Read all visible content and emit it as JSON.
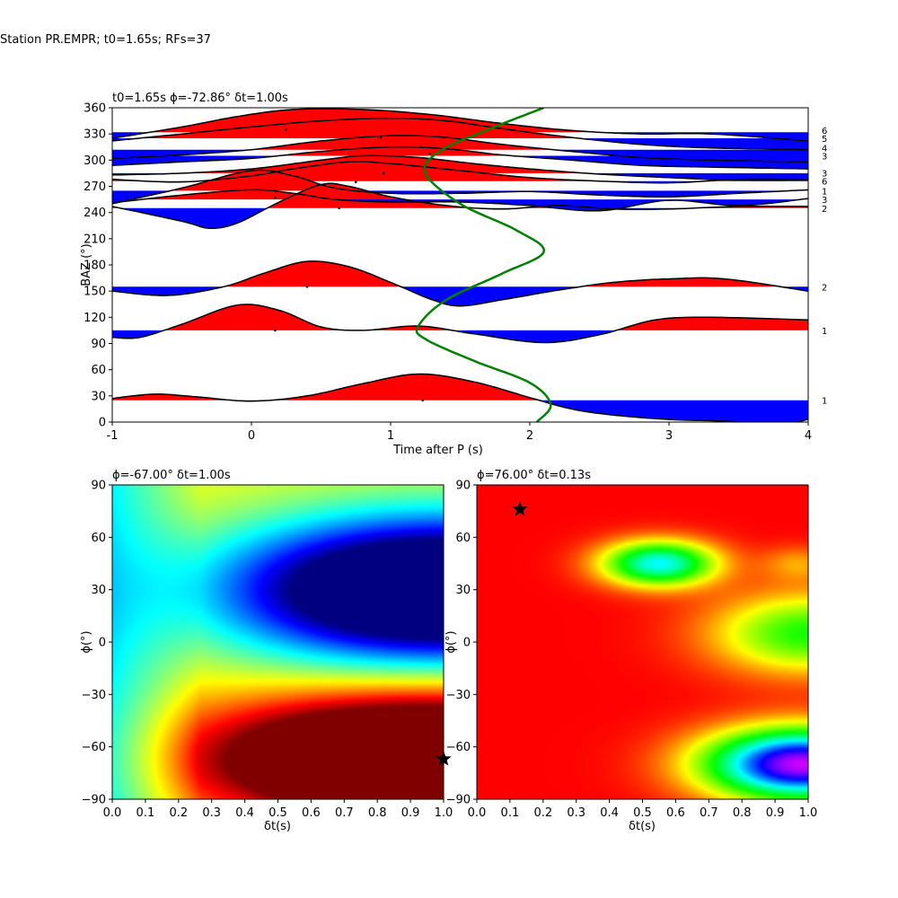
{
  "figure": {
    "suptitle": "Station PR.EMPR; t0=1.65s; RFs=37"
  },
  "chart_data": [
    {
      "type": "line",
      "title": "t0=1.65s ϕ=-72.86° δt=1.00s",
      "xlabel": "Time after P (s)",
      "ylabel": "BAZ (°)",
      "xlim": [
        -1,
        4
      ],
      "ylim": [
        0,
        360
      ],
      "xticks": [
        -1,
        0,
        1,
        2,
        3,
        4
      ],
      "yticks": [
        0,
        30,
        60,
        90,
        120,
        150,
        180,
        210,
        240,
        270,
        300,
        330,
        360
      ],
      "grid": false,
      "traces": [
        {
          "baz": 25,
          "count": "1",
          "points": [
            [
              -1,
              27
            ],
            [
              -0.7,
              32
            ],
            [
              -0.4,
              29
            ],
            [
              0,
              24
            ],
            [
              0.4,
              30
            ],
            [
              0.8,
              44
            ],
            [
              1.2,
              55
            ],
            [
              1.6,
              46
            ],
            [
              2.0,
              28
            ],
            [
              2.3,
              15
            ],
            [
              2.6,
              8
            ],
            [
              3.0,
              3
            ],
            [
              3.4,
              1
            ],
            [
              3.8,
              -2
            ],
            [
              4,
              3
            ]
          ]
        },
        {
          "baz": 105,
          "count": "1",
          "points": [
            [
              -1,
              97
            ],
            [
              -0.8,
              97
            ],
            [
              -0.5,
              112
            ],
            [
              -0.1,
              134
            ],
            [
              0.2,
              128
            ],
            [
              0.5,
              109
            ],
            [
              0.8,
              105
            ],
            [
              1.2,
              110
            ],
            [
              1.6,
              101
            ],
            [
              2.1,
              91
            ],
            [
              2.5,
              100
            ],
            [
              2.9,
              117
            ],
            [
              3.3,
              120
            ],
            [
              4,
              117
            ]
          ]
        },
        {
          "baz": 155,
          "count": "2",
          "points": [
            [
              -1,
              150
            ],
            [
              -0.6,
              145
            ],
            [
              -0.2,
              155
            ],
            [
              0.1,
              171
            ],
            [
              0.4,
              184
            ],
            [
              0.7,
              178
            ],
            [
              1.0,
              160
            ],
            [
              1.3,
              140
            ],
            [
              1.5,
              133
            ],
            [
              1.8,
              140
            ],
            [
              2.2,
              151
            ],
            [
              2.6,
              160
            ],
            [
              3.0,
              164
            ],
            [
              3.4,
              164
            ],
            [
              4,
              150
            ]
          ]
        },
        {
          "baz": 245,
          "count": "2",
          "points": [
            [
              -1,
              247
            ],
            [
              -0.5,
              230
            ],
            [
              -0.3,
              222
            ],
            [
              -0.1,
              228
            ],
            [
              0.2,
              252
            ],
            [
              0.5,
              272
            ],
            [
              0.7,
              270
            ],
            [
              1.0,
              258
            ],
            [
              1.4,
              248
            ],
            [
              1.8,
              244
            ],
            [
              2.2,
              248
            ],
            [
              2.6,
              244
            ],
            [
              3.0,
              244
            ],
            [
              3.5,
              247
            ],
            [
              4,
              247
            ]
          ]
        },
        {
          "baz": 255,
          "count": "3",
          "points": [
            [
              -1,
              251
            ],
            [
              -0.5,
              260
            ],
            [
              0,
              266
            ],
            [
              0.3,
              262
            ],
            [
              0.6,
              255
            ],
            [
              1.0,
              252
            ],
            [
              1.5,
              252
            ],
            [
              2.0,
              248
            ],
            [
              2.5,
              242
            ],
            [
              3.0,
              254
            ],
            [
              3.5,
              248
            ],
            [
              4,
              256
            ]
          ]
        },
        {
          "baz": 265,
          "count": "1",
          "points": [
            [
              -1,
              250
            ],
            [
              -0.5,
              268
            ],
            [
              0,
              288
            ],
            [
              0.3,
              282
            ],
            [
              0.6,
              268
            ],
            [
              1.0,
              262
            ],
            [
              1.5,
              262
            ],
            [
              2.0,
              264
            ],
            [
              2.5,
              260
            ],
            [
              3.0,
              258
            ],
            [
              3.5,
              262
            ],
            [
              4,
              266
            ]
          ]
        },
        {
          "baz": 276,
          "count": "6",
          "points": [
            [
              -1,
              278
            ],
            [
              -0.5,
              275
            ],
            [
              0,
              282
            ],
            [
              0.3,
              290
            ],
            [
              0.7,
              298
            ],
            [
              1.0,
              296
            ],
            [
              1.5,
              288
            ],
            [
              2.0,
              280
            ],
            [
              2.5,
              276
            ],
            [
              3.0,
              274
            ],
            [
              3.5,
              278
            ],
            [
              4,
              278
            ]
          ]
        },
        {
          "baz": 285,
          "count": "3",
          "points": [
            [
              -1,
              283
            ],
            [
              -0.5,
              285
            ],
            [
              0,
              290
            ],
            [
              0.5,
              300
            ],
            [
              0.8,
              305
            ],
            [
              1.2,
              303
            ],
            [
              1.6,
              296
            ],
            [
              2.0,
              290
            ],
            [
              2.5,
              284
            ],
            [
              3.0,
              280
            ],
            [
              3.5,
              277
            ],
            [
              4,
              277
            ]
          ]
        },
        {
          "baz": 305,
          "count": "3",
          "points": [
            [
              -1,
              294
            ],
            [
              -0.5,
              298
            ],
            [
              0,
              302
            ],
            [
              0.5,
              310
            ],
            [
              1.0,
              315
            ],
            [
              1.4,
              313
            ],
            [
              1.8,
              306
            ],
            [
              2.3,
              300
            ],
            [
              2.8,
              294
            ],
            [
              3.3,
              292
            ],
            [
              4,
              290
            ]
          ]
        },
        {
          "baz": 312,
          "count": "4",
          "points": [
            [
              -1,
              302
            ],
            [
              -0.5,
              306
            ],
            [
              0,
              312
            ],
            [
              0.5,
              322
            ],
            [
              1.0,
              328
            ],
            [
              1.4,
              326
            ],
            [
              1.8,
              318
            ],
            [
              2.3,
              310
            ],
            [
              2.8,
              303
            ],
            [
              3.3,
              300
            ],
            [
              4,
              298
            ]
          ]
        },
        {
          "baz": 325,
          "count": "5",
          "points": [
            [
              -1,
              322
            ],
            [
              -0.5,
              330
            ],
            [
              0,
              338
            ],
            [
              0.5,
              345
            ],
            [
              1.0,
              348
            ],
            [
              1.4,
              345
            ],
            [
              1.8,
              336
            ],
            [
              2.3,
              326
            ],
            [
              2.8,
              318
            ],
            [
              3.3,
              314
            ],
            [
              4,
              312
            ]
          ]
        },
        {
          "baz": 332,
          "count": "6",
          "points": [
            [
              -1,
              325
            ],
            [
              -0.5,
              338
            ],
            [
              -0.1,
              350
            ],
            [
              0.3,
              358
            ],
            [
              0.8,
              358
            ],
            [
              1.3,
              352
            ],
            [
              1.8,
              342
            ],
            [
              2.3,
              334
            ],
            [
              2.8,
              330
            ],
            [
              3.3,
              330
            ],
            [
              4,
              322
            ]
          ]
        }
      ],
      "model_curve": {
        "color": "#008000",
        "points": [
          [
            2.05,
            0
          ],
          [
            2.15,
            20
          ],
          [
            2.0,
            45
          ],
          [
            1.6,
            70
          ],
          [
            1.25,
            95
          ],
          [
            1.2,
            110
          ],
          [
            1.4,
            140
          ],
          [
            1.8,
            170
          ],
          [
            2.1,
            195
          ],
          [
            1.9,
            220
          ],
          [
            1.5,
            250
          ],
          [
            1.25,
            285
          ],
          [
            1.35,
            310
          ],
          [
            1.7,
            335
          ],
          [
            2.1,
            360
          ]
        ]
      },
      "markers": [
        [
          0.25,
          335
        ],
        [
          0.93,
          326
        ],
        [
          1.22,
          315
        ],
        [
          1.28,
          307
        ],
        [
          0.95,
          285
        ],
        [
          0.75,
          275
        ],
        [
          0.17,
          265
        ],
        [
          0.17,
          257
        ],
        [
          0.63,
          245
        ],
        [
          0.4,
          155
        ],
        [
          0.17,
          105
        ],
        [
          1.23,
          25
        ]
      ],
      "colors": {
        "positive": "#ff0000",
        "negative": "#0000ff",
        "trace": "#000000"
      }
    },
    {
      "type": "heatmap",
      "title": "ϕ=-67.00° δt=1.00s",
      "xlabel": "δt(s)",
      "ylabel": "ϕ(°)",
      "xlim": [
        0,
        1
      ],
      "ylim": [
        -90,
        90
      ],
      "xticks": [
        "0.0",
        "0.1",
        "0.2",
        "0.3",
        "0.4",
        "0.5",
        "0.6",
        "0.7",
        "0.8",
        "0.9",
        "1.0"
      ],
      "yticks": [
        -90,
        -60,
        -30,
        0,
        30,
        60,
        90
      ],
      "colormap": "jet",
      "best": {
        "dt": 1.0,
        "phi": -67
      },
      "blobs": [
        {
          "dt": 0.97,
          "phi": -67,
          "sdt": 0.45,
          "sphi": 24,
          "amp": 1.0
        },
        {
          "dt": 1.0,
          "phi": 30,
          "sdt": 0.45,
          "sphi": 28,
          "amp": -1.05
        }
      ],
      "baseline": 0.62
    },
    {
      "type": "heatmap",
      "title": "ϕ=76.00° δt=0.13s",
      "xlabel": "δt(s)",
      "ylabel": "ϕ(°)",
      "xlim": [
        0,
        1
      ],
      "ylim": [
        -90,
        90
      ],
      "xticks": [
        "0.0",
        "0.1",
        "0.2",
        "0.3",
        "0.4",
        "0.5",
        "0.6",
        "0.7",
        "0.8",
        "0.9",
        "1.0"
      ],
      "yticks": [
        -90,
        -60,
        -30,
        0,
        30,
        60,
        90
      ],
      "colormap": "hsv",
      "best": {
        "dt": 0.13,
        "phi": 76
      },
      "blobs": [
        {
          "dt": 0.55,
          "phi": 45,
          "sdt": 0.12,
          "sphi": 9,
          "amp": 0.5
        },
        {
          "dt": 0.97,
          "phi": 45,
          "sdt": 0.08,
          "sphi": 7,
          "amp": 0.1
        },
        {
          "dt": 1.0,
          "phi": 5,
          "sdt": 0.2,
          "sphi": 16,
          "amp": 0.32
        },
        {
          "dt": 0.98,
          "phi": -70,
          "sdt": 0.2,
          "sphi": 14,
          "amp": 0.8
        }
      ],
      "baseline": 0.0
    }
  ]
}
